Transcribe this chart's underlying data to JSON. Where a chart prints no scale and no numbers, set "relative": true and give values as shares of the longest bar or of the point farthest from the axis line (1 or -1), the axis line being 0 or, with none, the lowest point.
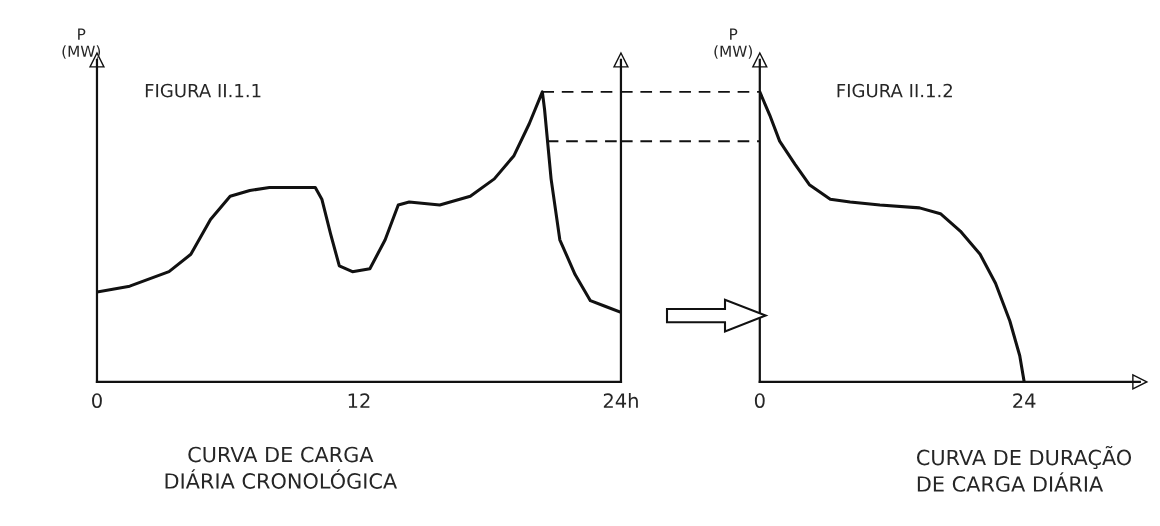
{
  "chart_data": [
    {
      "type": "line",
      "title": "FIGURA II.1.1",
      "ylabel": "P\n(MW)",
      "relative": true,
      "xlim": [
        0,
        24
      ],
      "xticks": [
        0,
        12,
        {
          "value": 24,
          "label": "24h"
        }
      ],
      "tick_labels": "x",
      "grid": false,
      "marker": "none",
      "line_style": "solid",
      "annotations": [
        "CURVA DE CARGA\nDIÁRIA CRONOLÓGICA"
      ],
      "series": [
        {
          "color": "#111111",
          "x": [
            0,
            1.5,
            3.3,
            4.3,
            5.2,
            6.1,
            7.0,
            7.9,
            10.0,
            10.3,
            10.7,
            11.1,
            11.7,
            12.5,
            13.2,
            13.8,
            14.3,
            15.7,
            17.1,
            18.2,
            19.1,
            19.8,
            20.4,
            20.5,
            20.8,
            21.2,
            21.9,
            22.6,
            23.3,
            24
          ],
          "values": [
            0.31,
            0.33,
            0.38,
            0.44,
            0.56,
            0.64,
            0.66,
            0.67,
            0.67,
            0.63,
            0.51,
            0.4,
            0.38,
            0.39,
            0.49,
            0.61,
            0.62,
            0.61,
            0.64,
            0.7,
            0.78,
            0.89,
            1,
            0.94,
            0.7,
            0.49,
            0.37,
            0.28,
            0.26,
            0.24
          ]
        },
        {
          "color": "#111111",
          "line_style": "dashed",
          "x": [
            20.4,
            24
          ],
          "values": [
            1,
            1
          ]
        },
        {
          "color": "#111111",
          "line_style": "dashed",
          "x": [
            20.6,
            24
          ],
          "values": [
            0.83,
            0.83
          ]
        }
      ]
    },
    {
      "type": "line",
      "title": "FIGURA II.1.2",
      "ylabel": "P\n(MW)",
      "relative": true,
      "xlim": [
        0,
        34.5
      ],
      "xticks": [
        0,
        24
      ],
      "tick_labels": "x",
      "grid": false,
      "marker": "none",
      "line_style": "solid",
      "annotations": [
        "CURVA DE DURAÇÃO\nDE CARGA DIÁRIA"
      ],
      "series": [
        {
          "color": "#111111",
          "x": [
            0,
            0.9,
            1.8,
            3.2,
            4.5,
            6.4,
            8.2,
            10.9,
            14.5,
            16.4,
            18.2,
            20.0,
            21.4,
            22.7,
            23.6,
            24
          ],
          "values": [
            1,
            0.92,
            0.83,
            0.75,
            0.68,
            0.63,
            0.62,
            0.61,
            0.6,
            0.58,
            0.52,
            0.44,
            0.34,
            0.21,
            0.09,
            0
          ]
        }
      ]
    }
  ]
}
